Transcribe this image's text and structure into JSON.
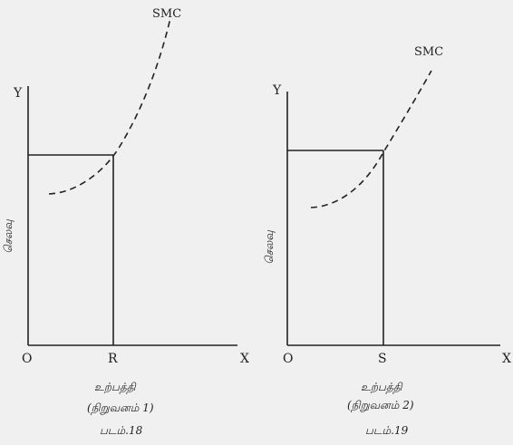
{
  "styles": {
    "background": "#f0f0f0",
    "ink": "#222222"
  },
  "panels": [
    {
      "y_axis_letter": "Y",
      "x_axis_letter": "X",
      "origin_label": "O",
      "output_label": "R",
      "curve_label": "SMC",
      "y_axis_title": "செலவு",
      "x_axis_title": "உற்பத்தி",
      "firm_label": "(நிறுவனம் 1)",
      "figure_caption": "படம்.18"
    },
    {
      "y_axis_letter": "Y",
      "x_axis_letter": "X",
      "origin_label": "O",
      "output_label": "S",
      "curve_label": "SMC",
      "y_axis_title": "செலவு",
      "x_axis_title": "உற்பத்தி",
      "firm_label": "(நிறுவனம் 2)",
      "figure_caption": "படம்.19"
    }
  ]
}
